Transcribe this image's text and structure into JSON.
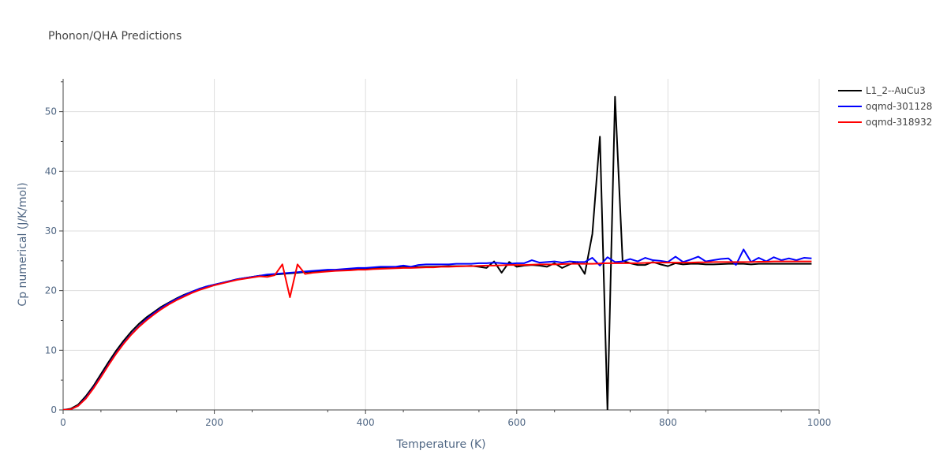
{
  "chart_data": {
    "type": "line",
    "title": "Phonon/QHA Predictions",
    "xlabel": "Temperature (K)",
    "ylabel": "Cp numerical (J/K/mol)",
    "xlim": [
      0,
      1000
    ],
    "ylim": [
      0,
      55.5
    ],
    "xticks": [
      0,
      200,
      400,
      600,
      800,
      1000
    ],
    "yticks": [
      0,
      10,
      20,
      30,
      40,
      50
    ],
    "grid": true,
    "legend_position": "top-right",
    "series": [
      {
        "name": "L1_2--AuCu3",
        "color": "#000000",
        "x": [
          0,
          10,
          20,
          30,
          40,
          50,
          60,
          70,
          80,
          90,
          100,
          110,
          120,
          130,
          140,
          150,
          160,
          170,
          180,
          190,
          200,
          210,
          220,
          230,
          240,
          250,
          260,
          270,
          280,
          290,
          300,
          310,
          320,
          330,
          340,
          350,
          360,
          370,
          380,
          390,
          400,
          410,
          420,
          430,
          440,
          450,
          460,
          470,
          480,
          490,
          500,
          510,
          520,
          530,
          540,
          550,
          560,
          570,
          580,
          590,
          600,
          610,
          620,
          630,
          640,
          650,
          660,
          670,
          680,
          690,
          700,
          710,
          720,
          730,
          740,
          750,
          760,
          770,
          780,
          790,
          800,
          810,
          820,
          830,
          840,
          850,
          860,
          870,
          880,
          890,
          900,
          910,
          920,
          930,
          940,
          950,
          960,
          970,
          980,
          990
        ],
        "y": [
          0,
          0.2,
          0.9,
          2.3,
          4.0,
          6.0,
          8.0,
          9.9,
          11.6,
          13.1,
          14.4,
          15.5,
          16.4,
          17.3,
          18.0,
          18.7,
          19.3,
          19.8,
          20.3,
          20.7,
          21.0,
          21.3,
          21.6,
          21.9,
          22.1,
          22.3,
          22.5,
          22.6,
          22.7,
          22.8,
          22.9,
          23.0,
          23.1,
          23.2,
          23.3,
          23.4,
          23.45,
          23.5,
          23.55,
          23.6,
          23.65,
          23.7,
          23.75,
          23.8,
          23.85,
          23.9,
          23.9,
          23.95,
          24.0,
          24.0,
          24.05,
          24.1,
          24.1,
          24.1,
          24.15,
          24.0,
          23.8,
          24.9,
          23.0,
          24.8,
          24.0,
          24.2,
          24.3,
          24.2,
          24.0,
          24.6,
          23.8,
          24.4,
          24.8,
          22.8,
          29.5,
          45.8,
          0,
          52.5,
          25.0,
          24.6,
          24.3,
          24.3,
          24.8,
          24.4,
          24.1,
          24.6,
          24.4,
          24.5,
          24.5,
          24.4,
          24.4,
          24.45,
          24.5,
          24.5,
          24.5,
          24.4,
          24.5,
          24.5,
          24.5,
          24.5,
          24.5,
          24.5,
          24.5,
          24.5
        ]
      },
      {
        "name": "oqmd-301128",
        "color": "#0000ff",
        "x": [
          0,
          10,
          20,
          30,
          40,
          50,
          60,
          70,
          80,
          90,
          100,
          110,
          120,
          130,
          140,
          150,
          160,
          170,
          180,
          190,
          200,
          210,
          220,
          230,
          240,
          250,
          260,
          270,
          280,
          290,
          300,
          310,
          320,
          330,
          340,
          350,
          360,
          370,
          380,
          390,
          400,
          410,
          420,
          430,
          440,
          450,
          460,
          470,
          480,
          490,
          500,
          510,
          520,
          530,
          540,
          550,
          560,
          570,
          580,
          590,
          600,
          610,
          620,
          630,
          640,
          650,
          660,
          670,
          680,
          690,
          700,
          710,
          720,
          730,
          740,
          750,
          760,
          770,
          780,
          790,
          800,
          810,
          820,
          830,
          840,
          850,
          860,
          870,
          880,
          890,
          900,
          910,
          920,
          930,
          940,
          950,
          960,
          970,
          980,
          990
        ],
        "y": [
          0,
          0.1,
          0.7,
          2.0,
          3.7,
          5.6,
          7.6,
          9.5,
          11.2,
          12.7,
          14.0,
          15.2,
          16.2,
          17.1,
          17.9,
          18.6,
          19.2,
          19.8,
          20.3,
          20.7,
          21.0,
          21.3,
          21.6,
          21.9,
          22.1,
          22.3,
          22.5,
          22.7,
          22.8,
          22.9,
          23.0,
          23.1,
          23.2,
          23.3,
          23.4,
          23.5,
          23.5,
          23.6,
          23.7,
          23.8,
          23.8,
          23.9,
          24.0,
          24.0,
          24.0,
          24.2,
          24.0,
          24.3,
          24.4,
          24.4,
          24.4,
          24.4,
          24.5,
          24.5,
          24.5,
          24.6,
          24.6,
          24.7,
          24.6,
          24.5,
          24.6,
          24.6,
          25.1,
          24.7,
          24.8,
          24.9,
          24.7,
          24.9,
          24.8,
          24.8,
          25.5,
          24.2,
          25.6,
          24.8,
          24.9,
          25.3,
          24.9,
          25.5,
          25.1,
          25.0,
          24.8,
          25.7,
          24.8,
          25.2,
          25.7,
          24.9,
          25.1,
          25.3,
          25.4,
          24.3,
          26.9,
          24.8,
          25.5,
          24.9,
          25.6,
          25.1,
          25.4,
          25.1,
          25.5,
          25.4
        ]
      },
      {
        "name": "oqmd-318932",
        "color": "#ff0000",
        "x": [
          0,
          10,
          20,
          30,
          40,
          50,
          60,
          70,
          80,
          90,
          100,
          110,
          120,
          130,
          140,
          150,
          160,
          170,
          180,
          190,
          200,
          210,
          220,
          230,
          240,
          250,
          260,
          270,
          280,
          290,
          300,
          310,
          320,
          330,
          340,
          350,
          360,
          370,
          380,
          390,
          400,
          410,
          420,
          430,
          440,
          450,
          460,
          470,
          480,
          490,
          500,
          510,
          520,
          530,
          540,
          550,
          560,
          570,
          580,
          590,
          600,
          610,
          620,
          630,
          640,
          650,
          660,
          670,
          680,
          690,
          700,
          710,
          720,
          730,
          740,
          750,
          760,
          770,
          780,
          790,
          800,
          810,
          820,
          830,
          840,
          850,
          860,
          870,
          880,
          890,
          900,
          910,
          920,
          930,
          940,
          950,
          960,
          970,
          980,
          990
        ],
        "y": [
          0,
          0.1,
          0.7,
          1.9,
          3.6,
          5.5,
          7.5,
          9.4,
          11.1,
          12.6,
          13.9,
          15.0,
          16.0,
          16.9,
          17.7,
          18.4,
          19.0,
          19.6,
          20.1,
          20.5,
          20.9,
          21.2,
          21.5,
          21.8,
          22.0,
          22.2,
          22.4,
          22.3,
          22.6,
          24.4,
          18.9,
          24.4,
          22.8,
          23.0,
          23.1,
          23.2,
          23.3,
          23.35,
          23.4,
          23.5,
          23.5,
          23.6,
          23.65,
          23.7,
          23.75,
          23.8,
          23.8,
          23.85,
          23.9,
          23.9,
          24.0,
          24.0,
          24.05,
          24.1,
          24.1,
          24.15,
          24.2,
          24.2,
          24.25,
          24.3,
          24.3,
          24.3,
          24.35,
          24.4,
          24.4,
          24.4,
          24.45,
          24.5,
          24.5,
          24.5,
          24.5,
          24.55,
          24.6,
          24.6,
          24.6,
          24.6,
          24.6,
          24.65,
          24.7,
          24.7,
          24.7,
          24.7,
          24.7,
          24.7,
          24.75,
          24.75,
          24.8,
          24.8,
          24.8,
          24.8,
          24.8,
          24.8,
          24.85,
          24.85,
          24.9,
          24.9,
          24.9,
          24.9,
          24.9,
          24.9
        ]
      }
    ]
  }
}
